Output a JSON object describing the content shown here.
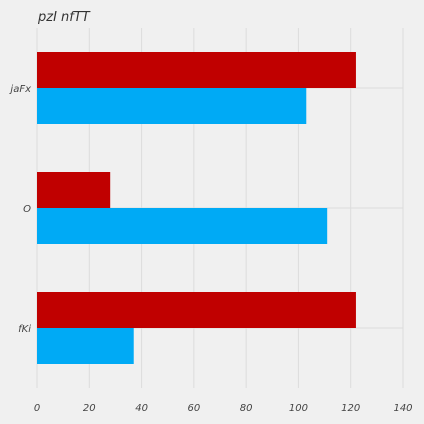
{
  "chart_data": {
    "type": "bar",
    "orientation": "horizontal",
    "title": "pzI nfTT",
    "xlabel": "",
    "ylabel": "",
    "categories": [
      "jaFx",
      "O",
      "fKi"
    ],
    "series": [
      {
        "values": [
          122,
          28,
          122
        ],
        "color": "#c00000"
      },
      {
        "values": [
          103,
          111,
          37
        ],
        "color": "#00aaf5"
      }
    ],
    "xlim": [
      0,
      140
    ],
    "xticks": [
      0,
      20,
      40,
      60,
      80,
      100,
      120,
      140
    ],
    "grid": true,
    "legend": "none"
  }
}
